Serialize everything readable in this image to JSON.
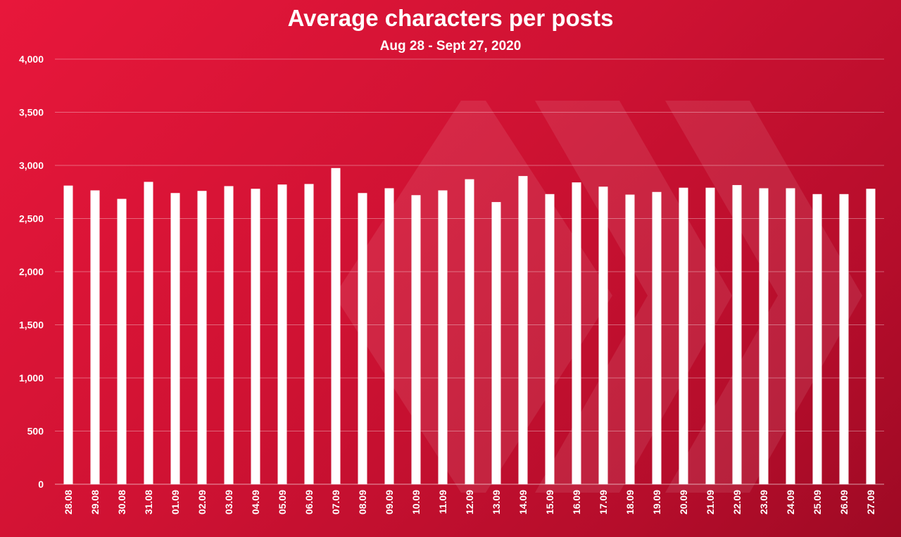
{
  "colors": {
    "background_start": "#e8173b",
    "background_end": "#9e0a24",
    "bar": "#ffffff",
    "text": "#ffffff",
    "grid": "#ffffff"
  },
  "chart_data": {
    "type": "bar",
    "title": "Average characters per posts",
    "subtitle": "Aug 28 - Sept 27, 2020",
    "xlabel": "",
    "ylabel": "",
    "ylim": [
      0,
      4000
    ],
    "yticks": [
      0,
      500,
      1000,
      1500,
      2000,
      2500,
      3000,
      3500,
      4000
    ],
    "ytick_labels": [
      "0",
      "500",
      "1,000",
      "1,500",
      "2,000",
      "2,500",
      "3,000",
      "3,500",
      "4,000"
    ],
    "grid": true,
    "legend": "none",
    "categories": [
      "28.08",
      "29.08",
      "30.08",
      "31.08",
      "01.09",
      "02.09",
      "03.09",
      "04.09",
      "05.09",
      "06.09",
      "07.09",
      "08.09",
      "09.09",
      "10.09",
      "11.09",
      "12.09",
      "13.09",
      "14.09",
      "15.09",
      "16.09",
      "17.09",
      "18.09",
      "19.09",
      "20.09",
      "21.09",
      "22.09",
      "23.09",
      "24.09",
      "25.09",
      "26.09",
      "27.09"
    ],
    "values": [
      2810,
      2765,
      2685,
      2845,
      2740,
      2760,
      2805,
      2780,
      2820,
      2825,
      2975,
      2740,
      2785,
      2720,
      2765,
      2870,
      2655,
      2900,
      2730,
      2840,
      2800,
      2725,
      2750,
      2790,
      2790,
      2815,
      2785,
      2785,
      2730,
      2730,
      2780
    ]
  }
}
